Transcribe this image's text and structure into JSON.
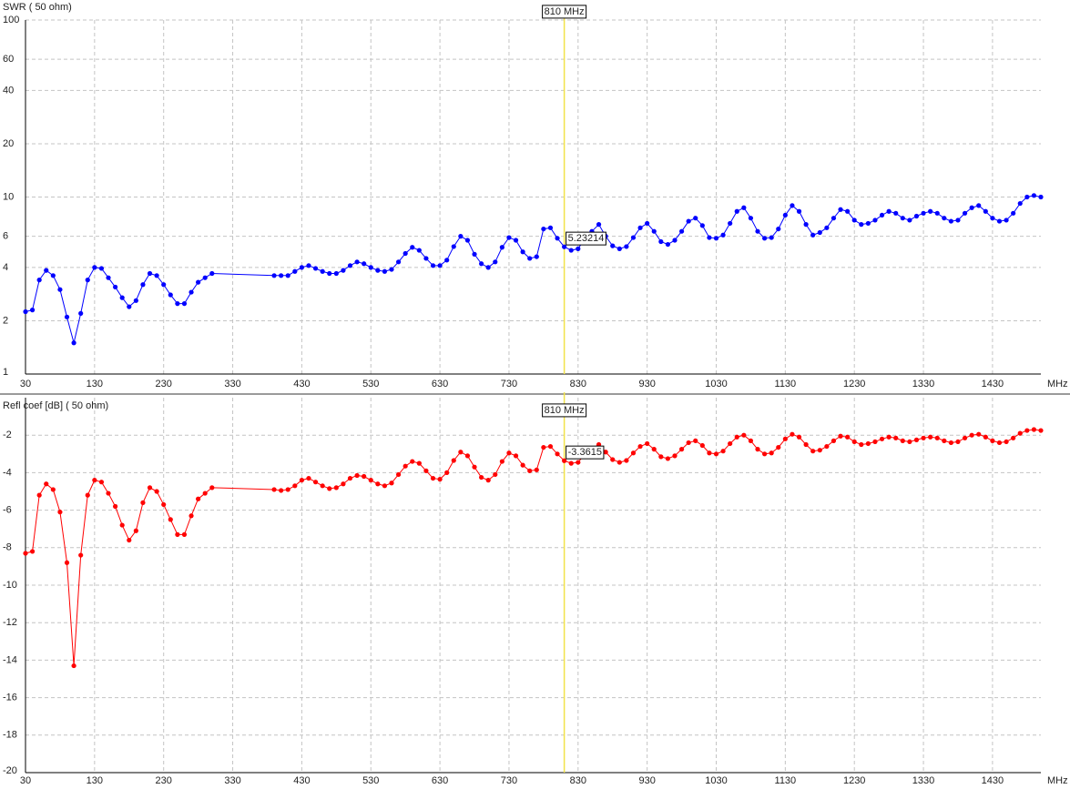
{
  "chart_data": [
    {
      "type": "line",
      "y_label": "SWR ( 50 ohm)",
      "x_unit": "MHz",
      "log_y": true,
      "grid": true,
      "color": "#0000ff",
      "x": [
        30,
        40,
        50,
        60,
        70,
        80,
        90,
        100,
        110,
        120,
        130,
        140,
        150,
        160,
        170,
        180,
        190,
        200,
        210,
        220,
        230,
        240,
        250,
        260,
        270,
        280,
        290,
        300,
        390,
        400,
        410,
        420,
        430,
        440,
        450,
        460,
        470,
        480,
        490,
        500,
        510,
        520,
        530,
        540,
        550,
        560,
        570,
        580,
        590,
        600,
        610,
        620,
        630,
        640,
        650,
        660,
        670,
        680,
        690,
        700,
        710,
        720,
        730,
        740,
        750,
        760,
        770,
        780,
        790,
        800,
        810,
        820,
        830,
        840,
        850,
        860,
        870,
        880,
        890,
        900,
        910,
        920,
        930,
        940,
        950,
        960,
        970,
        980,
        990,
        1000,
        1010,
        1020,
        1030,
        1040,
        1050,
        1060,
        1070,
        1080,
        1090,
        1100,
        1110,
        1120,
        1130,
        1140,
        1150,
        1160,
        1170,
        1180,
        1190,
        1200,
        1210,
        1220,
        1230,
        1240,
        1250,
        1260,
        1270,
        1280,
        1290,
        1300,
        1310,
        1320,
        1330,
        1340,
        1350,
        1360,
        1370,
        1380,
        1390,
        1400,
        1410,
        1420,
        1430,
        1440,
        1450,
        1460,
        1470,
        1480,
        1490,
        1500
      ],
      "values": [
        2.25,
        2.3,
        3.4,
        3.85,
        3.6,
        3.0,
        2.1,
        1.5,
        2.2,
        3.4,
        4.0,
        3.95,
        3.5,
        3.1,
        2.7,
        2.4,
        2.6,
        3.2,
        3.7,
        3.6,
        3.2,
        2.8,
        2.5,
        2.5,
        2.9,
        3.3,
        3.5,
        3.7,
        3.6,
        3.6,
        3.6,
        3.8,
        4.0,
        4.1,
        3.95,
        3.8,
        3.7,
        3.7,
        3.85,
        4.1,
        4.3,
        4.2,
        4.0,
        3.85,
        3.8,
        3.9,
        4.3,
        4.8,
        5.2,
        5.0,
        4.5,
        4.1,
        4.1,
        4.4,
        5.25,
        6.0,
        5.7,
        4.75,
        4.2,
        4.0,
        4.3,
        5.2,
        5.9,
        5.7,
        4.9,
        4.5,
        4.6,
        6.6,
        6.7,
        5.85,
        5.23214,
        5.0,
        5.1,
        5.85,
        6.4,
        7.0,
        6.0,
        5.3,
        5.1,
        5.25,
        5.9,
        6.7,
        7.1,
        6.4,
        5.6,
        5.4,
        5.7,
        6.4,
        7.3,
        7.6,
        6.9,
        5.9,
        5.85,
        6.1,
        7.1,
        8.3,
        8.7,
        7.6,
        6.4,
        5.85,
        5.9,
        6.6,
        7.9,
        8.95,
        8.3,
        7.0,
        6.1,
        6.3,
        6.7,
        7.6,
        8.5,
        8.3,
        7.4,
        7.0,
        7.1,
        7.4,
        7.9,
        8.3,
        8.1,
        7.6,
        7.4,
        7.8,
        8.1,
        8.3,
        8.1,
        7.6,
        7.3,
        7.4,
        8.1,
        8.7,
        8.95,
        8.3,
        7.6,
        7.3,
        7.4,
        8.1,
        9.2,
        10.0,
        10.2,
        10.0
      ],
      "xlim": [
        30,
        1500
      ],
      "xticks": [
        30,
        130,
        230,
        330,
        430,
        530,
        630,
        730,
        830,
        930,
        1030,
        1130,
        1230,
        1330,
        1430
      ],
      "ylim": [
        1,
        100
      ],
      "yticks": [
        1,
        2,
        4,
        6,
        10,
        20,
        40,
        60,
        100
      ],
      "cursor": {
        "x": 810,
        "label": "810 MHz"
      }
    },
    {
      "type": "line",
      "y_label": "Refl coef [dB] ( 50 ohm)",
      "x_unit": "MHz",
      "log_y": false,
      "grid": true,
      "color": "#ff0000",
      "x": [
        30,
        40,
        50,
        60,
        70,
        80,
        90,
        100,
        110,
        120,
        130,
        140,
        150,
        160,
        170,
        180,
        190,
        200,
        210,
        220,
        230,
        240,
        250,
        260,
        270,
        280,
        290,
        300,
        390,
        400,
        410,
        420,
        430,
        440,
        450,
        460,
        470,
        480,
        490,
        500,
        510,
        520,
        530,
        540,
        550,
        560,
        570,
        580,
        590,
        600,
        610,
        620,
        630,
        640,
        650,
        660,
        670,
        680,
        690,
        700,
        710,
        720,
        730,
        740,
        750,
        760,
        770,
        780,
        790,
        800,
        810,
        820,
        830,
        840,
        850,
        860,
        870,
        880,
        890,
        900,
        910,
        920,
        930,
        940,
        950,
        960,
        970,
        980,
        990,
        1000,
        1010,
        1020,
        1030,
        1040,
        1050,
        1060,
        1070,
        1080,
        1090,
        1100,
        1110,
        1120,
        1130,
        1140,
        1150,
        1160,
        1170,
        1180,
        1190,
        1200,
        1210,
        1220,
        1230,
        1240,
        1250,
        1260,
        1270,
        1280,
        1290,
        1300,
        1310,
        1320,
        1330,
        1340,
        1350,
        1360,
        1370,
        1380,
        1390,
        1400,
        1410,
        1420,
        1430,
        1440,
        1450,
        1460,
        1470,
        1480,
        1490,
        1500
      ],
      "values": [
        -8.3,
        -8.2,
        -5.2,
        -4.6,
        -4.9,
        -6.1,
        -8.8,
        -14.3,
        -8.4,
        -5.2,
        -4.4,
        -4.5,
        -5.1,
        -5.8,
        -6.8,
        -7.6,
        -7.1,
        -5.6,
        -4.8,
        -5.0,
        -5.7,
        -6.5,
        -7.3,
        -7.3,
        -6.3,
        -5.4,
        -5.1,
        -4.8,
        -4.9,
        -4.95,
        -4.9,
        -4.7,
        -4.4,
        -4.3,
        -4.5,
        -4.7,
        -4.85,
        -4.8,
        -4.6,
        -4.3,
        -4.15,
        -4.2,
        -4.4,
        -4.6,
        -4.7,
        -4.55,
        -4.1,
        -3.65,
        -3.4,
        -3.5,
        -3.9,
        -4.3,
        -4.35,
        -4.0,
        -3.35,
        -2.9,
        -3.1,
        -3.7,
        -4.25,
        -4.4,
        -4.1,
        -3.4,
        -2.95,
        -3.1,
        -3.6,
        -3.9,
        -3.85,
        -2.65,
        -2.6,
        -3.0,
        -3.3615,
        -3.5,
        -3.45,
        -3.0,
        -2.7,
        -2.5,
        -2.9,
        -3.3,
        -3.45,
        -3.35,
        -2.95,
        -2.6,
        -2.45,
        -2.75,
        -3.15,
        -3.25,
        -3.1,
        -2.75,
        -2.4,
        -2.3,
        -2.55,
        -2.95,
        -3.0,
        -2.85,
        -2.45,
        -2.1,
        -2.0,
        -2.3,
        -2.75,
        -3.0,
        -2.95,
        -2.65,
        -2.2,
        -1.95,
        -2.1,
        -2.5,
        -2.85,
        -2.8,
        -2.6,
        -2.3,
        -2.05,
        -2.1,
        -2.35,
        -2.5,
        -2.45,
        -2.35,
        -2.2,
        -2.1,
        -2.15,
        -2.3,
        -2.35,
        -2.25,
        -2.15,
        -2.1,
        -2.15,
        -2.3,
        -2.4,
        -2.35,
        -2.15,
        -2.0,
        -1.95,
        -2.1,
        -2.3,
        -2.4,
        -2.35,
        -2.15,
        -1.9,
        -1.75,
        -1.7,
        -1.75
      ],
      "xlim": [
        30,
        1500
      ],
      "xticks": [
        30,
        130,
        230,
        330,
        430,
        530,
        630,
        730,
        830,
        930,
        1030,
        1130,
        1230,
        1330,
        1430
      ],
      "ylim": [
        -20,
        0
      ],
      "yticks": [
        -20,
        -18,
        -16,
        -14,
        -12,
        -10,
        -8,
        -6,
        -4,
        -2
      ],
      "cursor": {
        "x": 810,
        "label": "810 MHz"
      }
    }
  ]
}
